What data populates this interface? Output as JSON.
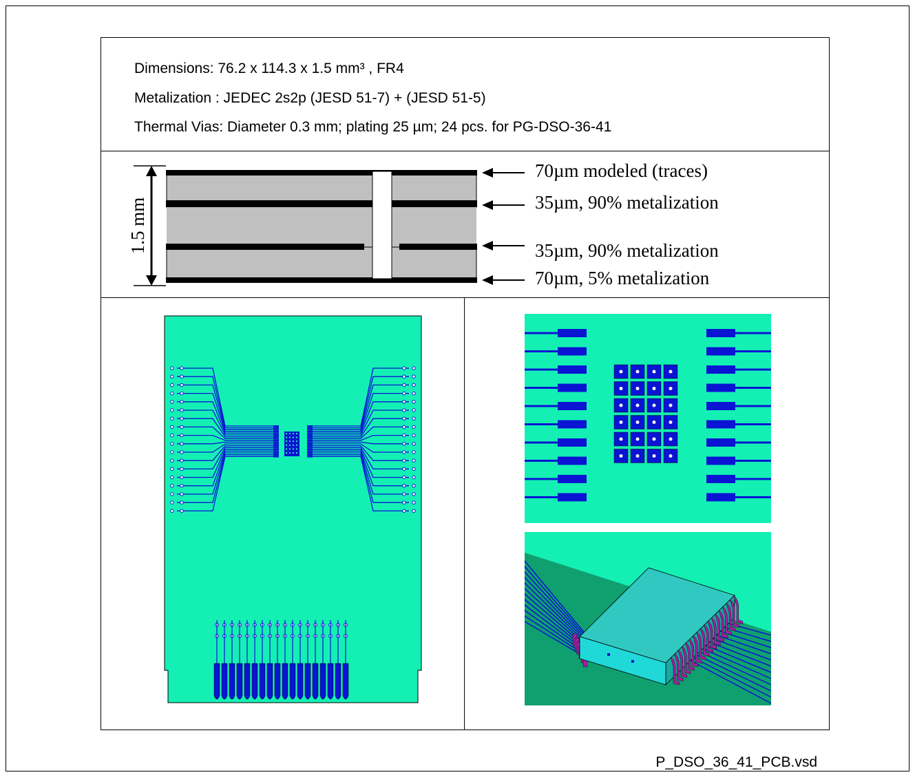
{
  "specs": {
    "dimensions": "Dimensions: 76.2 x 114.3 x 1.5 mm³ , FR4",
    "metalization": "Metalization : JEDEC 2s2p (JESD 51-7) + (JESD 51-5)",
    "thermal_vias": "Thermal Vias: Diameter 0.3 mm; plating 25 µm; 24 pcs. for PG-DSO-36-41"
  },
  "cross_section": {
    "thickness_label": "1.5 mm",
    "layers": [
      "70µm modeled (traces)",
      "35µm, 90% metalization",
      "35µm, 90% metalization",
      "70µm, 5% metalization"
    ]
  },
  "footer": "P_DSO_36_41_PCB.vsd",
  "colors": {
    "board": "#14F0B4",
    "trace": "#0A14D2",
    "pad_3d": "#A020A0",
    "package_3d": "#20D0D0",
    "fr4": "#C0C0C0",
    "metal": "#000000",
    "board_dark": "#10A070"
  }
}
